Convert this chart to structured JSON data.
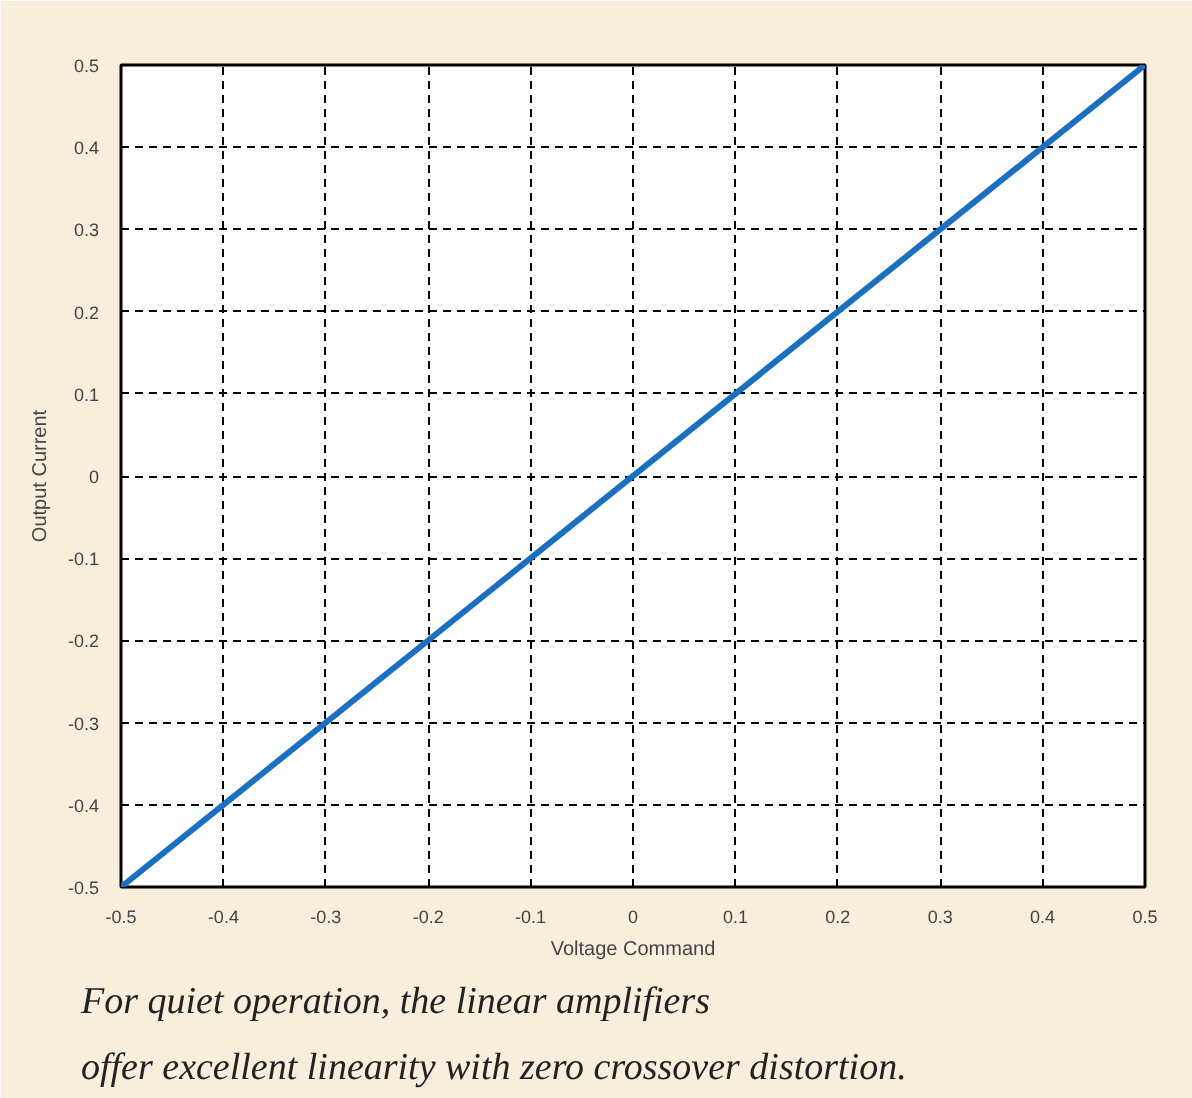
{
  "chart_data": {
    "type": "line",
    "xlabel": "Voltage Command",
    "ylabel": "Output Current",
    "x": [
      -0.5,
      0.5
    ],
    "series": [
      {
        "color": "#1a6fc0",
        "values": [
          -0.5,
          0.5
        ]
      }
    ],
    "xlim": [
      -0.5,
      0.5
    ],
    "ylim": [
      -0.5,
      0.5
    ],
    "xticks": [
      -0.5,
      -0.4,
      -0.3,
      -0.2,
      -0.1,
      0,
      0.1,
      0.2,
      0.3,
      0.4,
      0.5
    ],
    "yticks": [
      -0.5,
      -0.4,
      -0.3,
      -0.2,
      -0.1,
      0,
      0.1,
      0.2,
      0.3,
      0.4,
      0.5
    ],
    "grid": true,
    "line_style": "solid",
    "annotations": [
      "For quiet operation, the linear amplifiers",
      "offer excellent linearity with zero crossover distortion."
    ]
  }
}
